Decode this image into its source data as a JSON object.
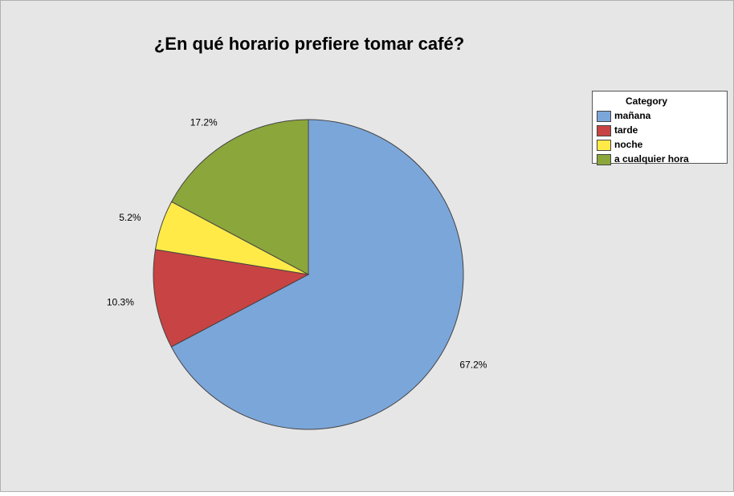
{
  "chart_data": {
    "type": "pie",
    "title": "¿En qué horario prefiere tomar café?",
    "categories": [
      "mañana",
      "tarde",
      "noche",
      "a cualquier hora"
    ],
    "values": [
      67.2,
      10.3,
      5.2,
      17.2
    ],
    "value_labels": [
      "67.2%",
      "10.3%",
      "5.2%",
      "17.2%"
    ],
    "colors": [
      "#7ba6da",
      "#c84343",
      "#ffea48",
      "#8ba63b"
    ],
    "legend_title": "Category",
    "legend_position": "upper right"
  }
}
